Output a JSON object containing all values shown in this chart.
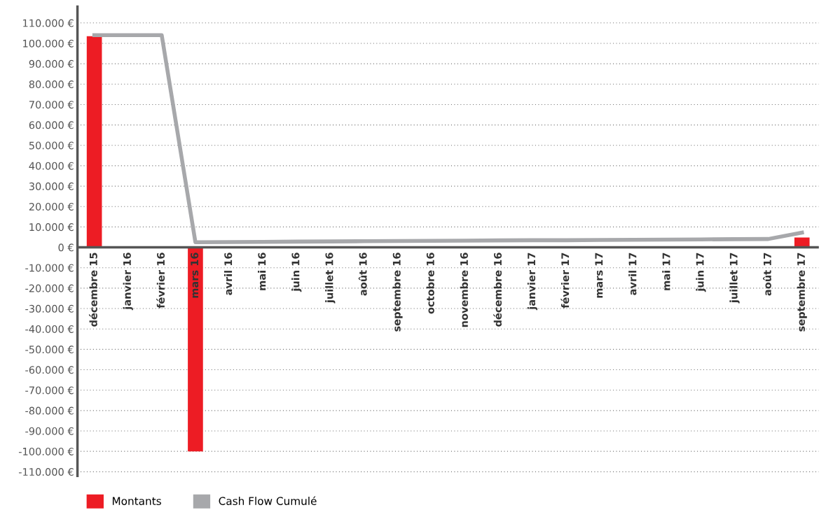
{
  "chart_data": {
    "type": "bar",
    "categories": [
      "décembre 15",
      "janvier 16",
      "février 16",
      "mars 16",
      "avril 16",
      "mai 16",
      "juin 16",
      "juillet 16",
      "août 16",
      "septembre 16",
      "octobre 16",
      "novembre 16",
      "décembre 16",
      "janvier 17",
      "février 17",
      "mars 17",
      "avril 17",
      "mai 17",
      "juin 17",
      "juillet 17",
      "août 17",
      "septembre 17"
    ],
    "series": [
      {
        "name": "Montants",
        "color": "#ed1c24",
        "values": [
          103500,
          0,
          0,
          -100000,
          0,
          0,
          0,
          0,
          0,
          0,
          0,
          0,
          0,
          0,
          0,
          0,
          0,
          0,
          0,
          0,
          0,
          4800
        ]
      },
      {
        "name": "Cash Flow Cumulé",
        "type": "line",
        "color": "#a7a8ab",
        "values": [
          104000,
          104000,
          104000,
          2500,
          2600,
          2700,
          2800,
          2900,
          3000,
          3100,
          3200,
          3300,
          3400,
          3500,
          3500,
          3600,
          3700,
          3800,
          3900,
          4000,
          4100,
          7200
        ]
      }
    ],
    "ylim": [
      -112000,
      118000
    ],
    "yticks": [
      {
        "value": -110000,
        "label": "-110.000 €"
      },
      {
        "value": -100000,
        "label": "-100.000 €"
      },
      {
        "value": -90000,
        "label": "-90.000 €"
      },
      {
        "value": -80000,
        "label": "-80.000 €"
      },
      {
        "value": -70000,
        "label": "-70.000 €"
      },
      {
        "value": -60000,
        "label": "-60.000 €"
      },
      {
        "value": -50000,
        "label": "-50.000 €"
      },
      {
        "value": -40000,
        "label": "-40.000 €"
      },
      {
        "value": -30000,
        "label": "-30.000 €"
      },
      {
        "value": -20000,
        "label": "-20.000 €"
      },
      {
        "value": -10000,
        "label": "-10.000 €"
      },
      {
        "value": 0,
        "label": "0 €"
      },
      {
        "value": 10000,
        "label": "10.000 €"
      },
      {
        "value": 20000,
        "label": "20.000 €"
      },
      {
        "value": 30000,
        "label": "30.000 €"
      },
      {
        "value": 40000,
        "label": "40.000 €"
      },
      {
        "value": 50000,
        "label": "50.000 €"
      },
      {
        "value": 60000,
        "label": "60.000 €"
      },
      {
        "value": 70000,
        "label": "70.000 €"
      },
      {
        "value": 80000,
        "label": "80.000 €"
      },
      {
        "value": 90000,
        "label": "90.000 €"
      },
      {
        "value": 100000,
        "label": "100.000 €"
      },
      {
        "value": 110000,
        "label": "110.000 €"
      }
    ],
    "grid": "y",
    "legend": "bottom left",
    "marker": "none",
    "line_style": "solid"
  }
}
